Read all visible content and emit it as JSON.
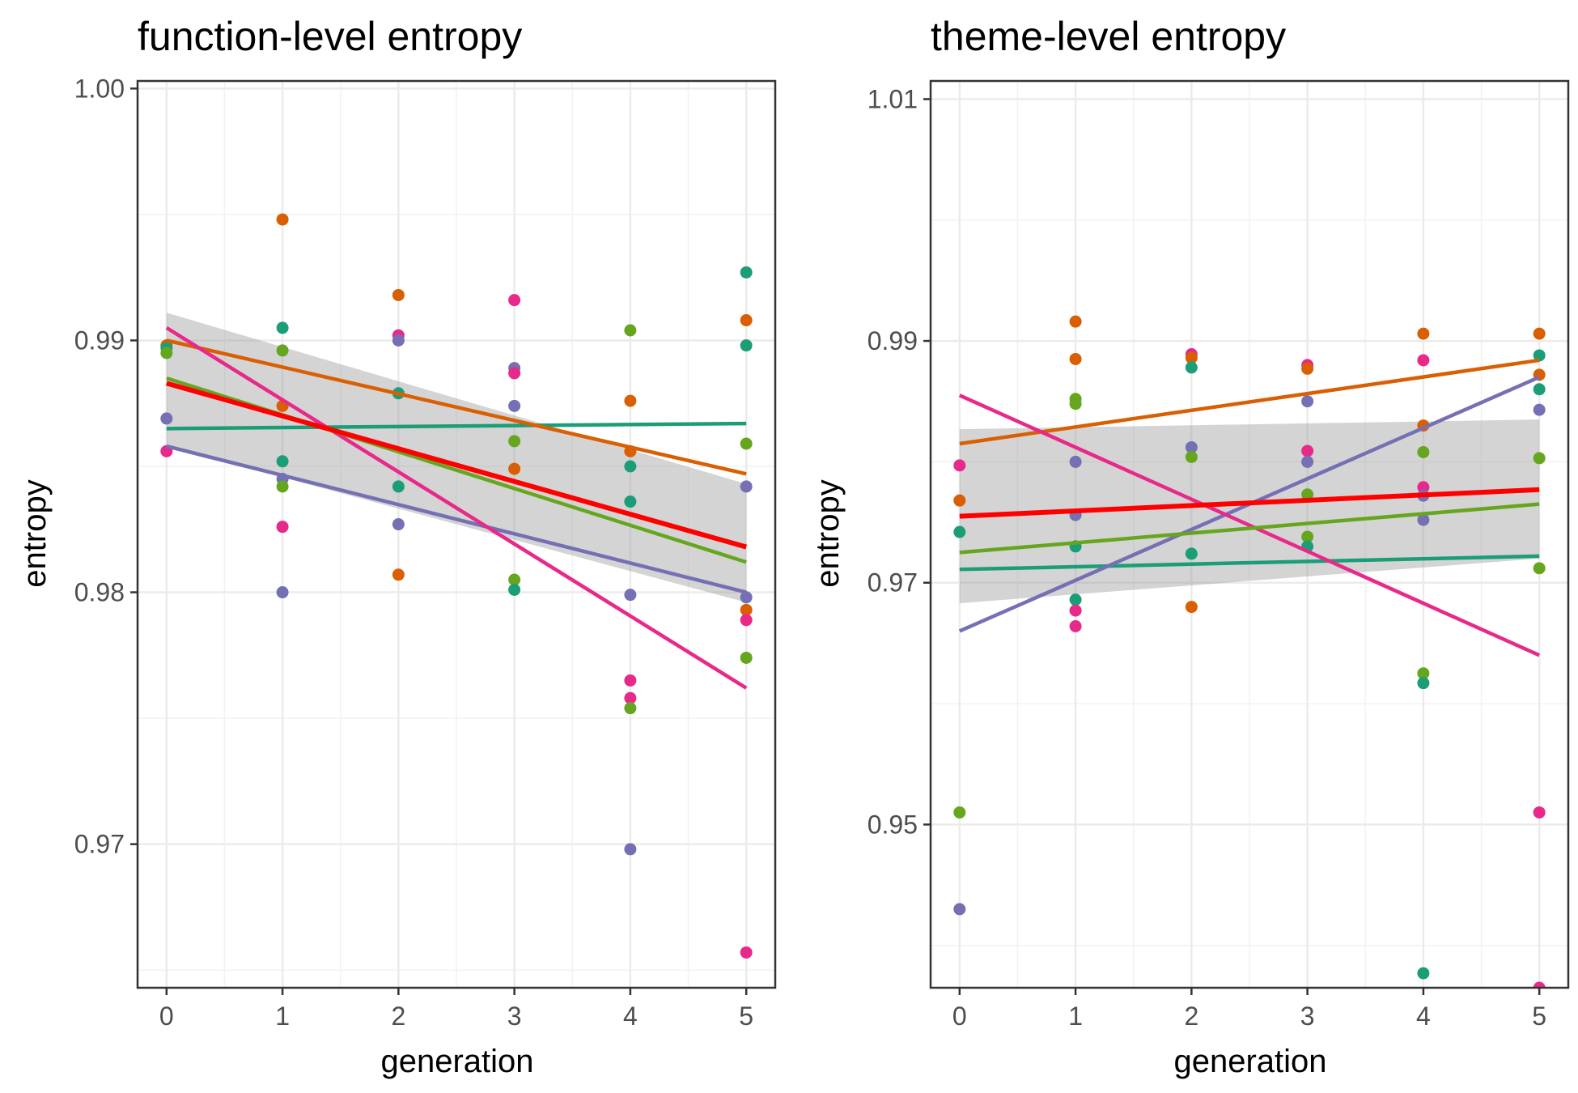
{
  "chart_data": [
    {
      "type": "scatter",
      "title": "function-level entropy",
      "xlabel": "generation",
      "ylabel": "entropy",
      "xlim": [
        -0.25,
        5.25
      ],
      "ylim": [
        0.9643,
        1.0003
      ],
      "x_ticks": [
        0,
        1,
        2,
        3,
        4,
        5
      ],
      "y_ticks": [
        0.97,
        0.98,
        0.99,
        1.0
      ],
      "y_tick_labels": [
        "0.97",
        "0.98",
        "0.99",
        "1.00"
      ],
      "grid": true,
      "legend": "none",
      "points": [
        {
          "x": 0,
          "y": 0.9898,
          "color": "#D95F02"
        },
        {
          "x": 0,
          "y": 0.9897,
          "color": "#1B9E77"
        },
        {
          "x": 0,
          "y": 0.9895,
          "color": "#66A61E"
        },
        {
          "x": 0,
          "y": 0.9869,
          "color": "#7570B3"
        },
        {
          "x": 0,
          "y": 0.9856,
          "color": "#E7298A"
        },
        {
          "x": 1,
          "y": 0.9948,
          "color": "#D95F02"
        },
        {
          "x": 1,
          "y": 0.9905,
          "color": "#1B9E77"
        },
        {
          "x": 1,
          "y": 0.9896,
          "color": "#66A61E"
        },
        {
          "x": 1,
          "y": 0.9874,
          "color": "#D95F02"
        },
        {
          "x": 1,
          "y": 0.9852,
          "color": "#1B9E77"
        },
        {
          "x": 1,
          "y": 0.9845,
          "color": "#7570B3"
        },
        {
          "x": 1,
          "y": 0.9842,
          "color": "#66A61E"
        },
        {
          "x": 1,
          "y": 0.9826,
          "color": "#E7298A"
        },
        {
          "x": 1,
          "y": 0.98,
          "color": "#7570B3"
        },
        {
          "x": 2,
          "y": 0.9918,
          "color": "#D95F02"
        },
        {
          "x": 2,
          "y": 0.9902,
          "color": "#E7298A"
        },
        {
          "x": 2,
          "y": 0.99,
          "color": "#7570B3"
        },
        {
          "x": 2,
          "y": 0.9879,
          "color": "#1B9E77"
        },
        {
          "x": 2,
          "y": 0.9842,
          "color": "#1B9E77"
        },
        {
          "x": 2,
          "y": 0.9827,
          "color": "#7570B3"
        },
        {
          "x": 2,
          "y": 0.9807,
          "color": "#D95F02"
        },
        {
          "x": 3,
          "y": 0.9916,
          "color": "#E7298A"
        },
        {
          "x": 3,
          "y": 0.9889,
          "color": "#7570B3"
        },
        {
          "x": 3,
          "y": 0.9887,
          "color": "#E7298A"
        },
        {
          "x": 3,
          "y": 0.9874,
          "color": "#7570B3"
        },
        {
          "x": 3,
          "y": 0.986,
          "color": "#66A61E"
        },
        {
          "x": 3,
          "y": 0.9849,
          "color": "#D95F02"
        },
        {
          "x": 3,
          "y": 0.9805,
          "color": "#66A61E"
        },
        {
          "x": 3,
          "y": 0.9801,
          "color": "#1B9E77"
        },
        {
          "x": 4,
          "y": 0.9904,
          "color": "#66A61E"
        },
        {
          "x": 4,
          "y": 0.9876,
          "color": "#D95F02"
        },
        {
          "x": 4,
          "y": 0.9856,
          "color": "#D95F02"
        },
        {
          "x": 4,
          "y": 0.985,
          "color": "#1B9E77"
        },
        {
          "x": 4,
          "y": 0.9836,
          "color": "#1B9E77"
        },
        {
          "x": 4,
          "y": 0.9799,
          "color": "#7570B3"
        },
        {
          "x": 4,
          "y": 0.9765,
          "color": "#E7298A"
        },
        {
          "x": 4,
          "y": 0.9758,
          "color": "#E7298A"
        },
        {
          "x": 4,
          "y": 0.9754,
          "color": "#66A61E"
        },
        {
          "x": 4,
          "y": 0.9698,
          "color": "#7570B3"
        },
        {
          "x": 5,
          "y": 0.9927,
          "color": "#1B9E77"
        },
        {
          "x": 5,
          "y": 0.9908,
          "color": "#D95F02"
        },
        {
          "x": 5,
          "y": 0.9898,
          "color": "#1B9E77"
        },
        {
          "x": 5,
          "y": 0.9859,
          "color": "#66A61E"
        },
        {
          "x": 5,
          "y": 0.9842,
          "color": "#7570B3"
        },
        {
          "x": 5,
          "y": 0.9798,
          "color": "#7570B3"
        },
        {
          "x": 5,
          "y": 0.9793,
          "color": "#D95F02"
        },
        {
          "x": 5,
          "y": 0.9789,
          "color": "#E7298A"
        },
        {
          "x": 5,
          "y": 0.9774,
          "color": "#66A61E"
        },
        {
          "x": 5,
          "y": 0.9657,
          "color": "#E7298A"
        }
      ],
      "fits": [
        {
          "color": "#1B9E77",
          "x": [
            0,
            5
          ],
          "y": [
            0.9865,
            0.9867
          ]
        },
        {
          "color": "#D95F02",
          "x": [
            0,
            5
          ],
          "y": [
            0.99,
            0.9847
          ]
        },
        {
          "color": "#7570B3",
          "x": [
            0,
            5
          ],
          "y": [
            0.9858,
            0.98
          ]
        },
        {
          "color": "#E7298A",
          "x": [
            0,
            5
          ],
          "y": [
            0.9905,
            0.9762
          ]
        },
        {
          "color": "#66A61E",
          "x": [
            0,
            5
          ],
          "y": [
            0.9885,
            0.9812
          ]
        },
        {
          "color": "#FF0000",
          "x": [
            0,
            5
          ],
          "y": [
            0.9883,
            0.9818
          ],
          "ribbon": {
            "lower": [
              0.9858,
              0.9796
            ],
            "upper": [
              0.9911,
              0.9843
            ]
          }
        }
      ]
    },
    {
      "type": "scatter",
      "title": "theme-level entropy",
      "xlabel": "generation",
      "ylabel": "entropy",
      "xlim": [
        -0.25,
        5.25
      ],
      "ylim": [
        0.9365,
        1.0115
      ],
      "x_ticks": [
        0,
        1,
        2,
        3,
        4,
        5
      ],
      "y_ticks": [
        0.95,
        0.97,
        0.99,
        1.01
      ],
      "y_tick_labels": [
        "0.95",
        "0.97",
        "0.99",
        "1.01"
      ],
      "grid": true,
      "legend": "none",
      "points": [
        {
          "x": 0,
          "y": 0.9797,
          "color": "#E7298A"
        },
        {
          "x": 0,
          "y": 0.9768,
          "color": "#D95F02"
        },
        {
          "x": 0,
          "y": 0.9742,
          "color": "#1B9E77"
        },
        {
          "x": 0,
          "y": 0.951,
          "color": "#66A61E"
        },
        {
          "x": 0,
          "y": 0.943,
          "color": "#7570B3"
        },
        {
          "x": 1,
          "y": 0.9916,
          "color": "#D95F02"
        },
        {
          "x": 1,
          "y": 0.9885,
          "color": "#D95F02"
        },
        {
          "x": 1,
          "y": 0.9852,
          "color": "#66A61E"
        },
        {
          "x": 1,
          "y": 0.9848,
          "color": "#66A61E"
        },
        {
          "x": 1,
          "y": 0.98,
          "color": "#7570B3"
        },
        {
          "x": 1,
          "y": 0.9756,
          "color": "#7570B3"
        },
        {
          "x": 1,
          "y": 0.973,
          "color": "#1B9E77"
        },
        {
          "x": 1,
          "y": 0.9686,
          "color": "#1B9E77"
        },
        {
          "x": 1,
          "y": 0.9677,
          "color": "#E7298A"
        },
        {
          "x": 1,
          "y": 0.9664,
          "color": "#E7298A"
        },
        {
          "x": 2,
          "y": 0.9889,
          "color": "#E7298A"
        },
        {
          "x": 2,
          "y": 0.9886,
          "color": "#D95F02"
        },
        {
          "x": 2,
          "y": 0.9878,
          "color": "#1B9E77"
        },
        {
          "x": 2,
          "y": 0.9812,
          "color": "#7570B3"
        },
        {
          "x": 2,
          "y": 0.9804,
          "color": "#66A61E"
        },
        {
          "x": 2,
          "y": 0.9724,
          "color": "#1B9E77"
        },
        {
          "x": 2,
          "y": 0.968,
          "color": "#D95F02"
        },
        {
          "x": 3,
          "y": 0.988,
          "color": "#E7298A"
        },
        {
          "x": 3,
          "y": 0.9877,
          "color": "#D95F02"
        },
        {
          "x": 3,
          "y": 0.985,
          "color": "#7570B3"
        },
        {
          "x": 3,
          "y": 0.9809,
          "color": "#E7298A"
        },
        {
          "x": 3,
          "y": 0.98,
          "color": "#7570B3"
        },
        {
          "x": 3,
          "y": 0.9773,
          "color": "#66A61E"
        },
        {
          "x": 3,
          "y": 0.9738,
          "color": "#66A61E"
        },
        {
          "x": 3,
          "y": 0.973,
          "color": "#1B9E77"
        },
        {
          "x": 4,
          "y": 0.9906,
          "color": "#D95F02"
        },
        {
          "x": 4,
          "y": 0.9884,
          "color": "#E7298A"
        },
        {
          "x": 4,
          "y": 0.983,
          "color": "#D95F02"
        },
        {
          "x": 4,
          "y": 0.9808,
          "color": "#66A61E"
        },
        {
          "x": 4,
          "y": 0.9779,
          "color": "#E7298A"
        },
        {
          "x": 4,
          "y": 0.9772,
          "color": "#7570B3"
        },
        {
          "x": 4,
          "y": 0.9752,
          "color": "#7570B3"
        },
        {
          "x": 4,
          "y": 0.9625,
          "color": "#66A61E"
        },
        {
          "x": 4,
          "y": 0.9617,
          "color": "#1B9E77"
        },
        {
          "x": 4,
          "y": 0.9377,
          "color": "#1B9E77"
        },
        {
          "x": 5,
          "y": 0.9906,
          "color": "#D95F02"
        },
        {
          "x": 5,
          "y": 0.9888,
          "color": "#1B9E77"
        },
        {
          "x": 5,
          "y": 0.9872,
          "color": "#D95F02"
        },
        {
          "x": 5,
          "y": 0.986,
          "color": "#1B9E77"
        },
        {
          "x": 5,
          "y": 0.9843,
          "color": "#7570B3"
        },
        {
          "x": 5,
          "y": 0.9803,
          "color": "#66A61E"
        },
        {
          "x": 5,
          "y": 0.9712,
          "color": "#66A61E"
        },
        {
          "x": 5,
          "y": 0.951,
          "color": "#E7298A"
        },
        {
          "x": 5,
          "y": 0.9365,
          "color": "#E7298A"
        }
      ],
      "fits": [
        {
          "color": "#1B9E77",
          "x": [
            0,
            5
          ],
          "y": [
            0.9711,
            0.9722
          ]
        },
        {
          "color": "#D95F02",
          "x": [
            0,
            5
          ],
          "y": [
            0.9815,
            0.9884
          ]
        },
        {
          "color": "#7570B3",
          "x": [
            0,
            5
          ],
          "y": [
            0.966,
            0.987
          ]
        },
        {
          "color": "#E7298A",
          "x": [
            0,
            5
          ],
          "y": [
            0.9855,
            0.964
          ]
        },
        {
          "color": "#66A61E",
          "x": [
            0,
            5
          ],
          "y": [
            0.9725,
            0.9765
          ]
        },
        {
          "color": "#FF0000",
          "x": [
            0,
            5
          ],
          "y": [
            0.9755,
            0.9777
          ],
          "ribbon": {
            "lower": [
              0.9683,
              0.972
            ],
            "upper": [
              0.9827,
              0.9835
            ]
          }
        }
      ]
    }
  ]
}
